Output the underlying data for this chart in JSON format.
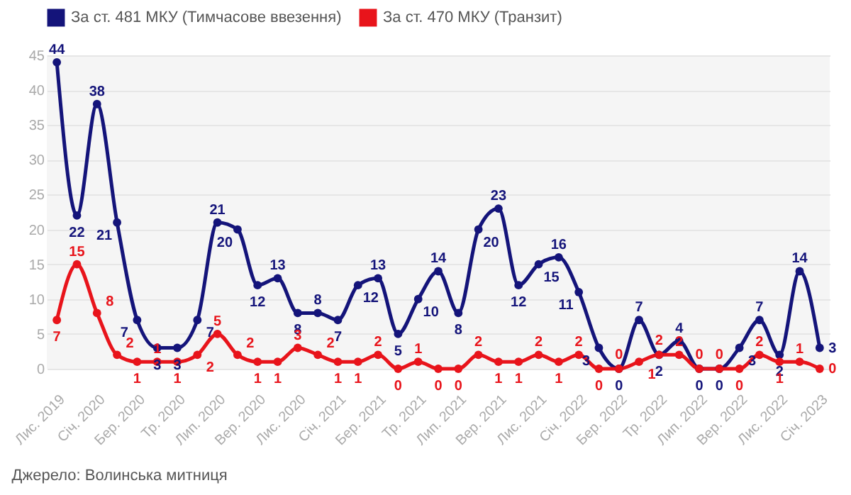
{
  "chart_data": {
    "type": "line",
    "categories": [
      "Лис. 2019",
      null,
      "Січ. 2020",
      null,
      "Бер. 2020",
      null,
      "Тр. 2020",
      null,
      "Лип. 2020",
      null,
      "Вер. 2020",
      null,
      "Лис. 2020",
      null,
      "Січ. 2021",
      null,
      "Бер. 2021",
      null,
      "Тр. 2021",
      null,
      "Лип. 2021",
      null,
      "Вер. 2021",
      null,
      "Лис. 2021",
      null,
      "Січ. 2022",
      null,
      "Бер. 2022",
      null,
      "Тр. 2022",
      null,
      "Лип. 2022",
      null,
      "Вер. 2022",
      null,
      "Лис. 2022",
      null,
      "Січ. 2023"
    ],
    "series": [
      {
        "name": "За ст. 481 МКУ (Тимчасове ввезення)",
        "color": "#14147a",
        "values": [
          44,
          22,
          38,
          21,
          7,
          3,
          3,
          7,
          21,
          20,
          12,
          13,
          8,
          8,
          7,
          12,
          13,
          5,
          10,
          14,
          8,
          20,
          23,
          12,
          15,
          16,
          11,
          3,
          0,
          7,
          2,
          4,
          0,
          0,
          3,
          7,
          2,
          14,
          3
        ]
      },
      {
        "name": "За ст. 470 МКУ (Транзит)",
        "color": "#e8141b",
        "values": [
          7,
          15,
          8,
          2,
          1,
          1,
          1,
          2,
          5,
          2,
          1,
          1,
          3,
          2,
          1,
          1,
          2,
          0,
          1,
          0,
          0,
          2,
          1,
          1,
          2,
          1,
          2,
          0,
          0,
          1,
          2,
          2,
          0,
          0,
          0,
          2,
          1,
          1,
          0
        ]
      }
    ],
    "ylim": [
      0,
      45
    ],
    "yticks": [
      0,
      5,
      10,
      15,
      20,
      25,
      30,
      35,
      40,
      45
    ],
    "grid": "y",
    "legend": "top left",
    "marker": "circle",
    "line_style": "solid",
    "data_labels": true,
    "annotations": [
      "Джерело: Волинська митниця"
    ]
  }
}
